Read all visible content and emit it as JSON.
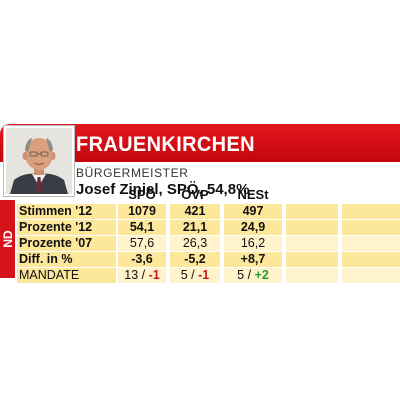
{
  "card": {
    "title": "FRAUENKIRCHEN",
    "subtitle": "BÜRGERMEISTER",
    "mayor": "Josef Ziniel, SPÖ, 54,8%",
    "district": "ND"
  },
  "columns": [
    "SPÖ",
    "ÖVP",
    "NESt"
  ],
  "rows": [
    {
      "label": "Stimmen '12",
      "values": [
        "1079",
        "421",
        "497"
      ]
    },
    {
      "label": "Prozente '12",
      "values": [
        "54,1",
        "21,1",
        "24,9"
      ]
    },
    {
      "label": "Prozente '07",
      "values": [
        "57,6",
        "26,3",
        "16,2"
      ]
    },
    {
      "label": "Diff. in %",
      "values": [
        "-3,6",
        "-5,2",
        "+8,7"
      ]
    },
    {
      "label": "MANDATE",
      "seats": [
        "13",
        "5",
        "5"
      ],
      "changes": [
        "-1",
        "-1",
        "+2"
      ],
      "separator": "/"
    }
  ],
  "colors": {
    "brand_red": "#d5131a",
    "row_yellow": "#fde79a",
    "row_light": "#fff3cc",
    "positive": "#2b9a2b",
    "negative": "#d5131a"
  }
}
